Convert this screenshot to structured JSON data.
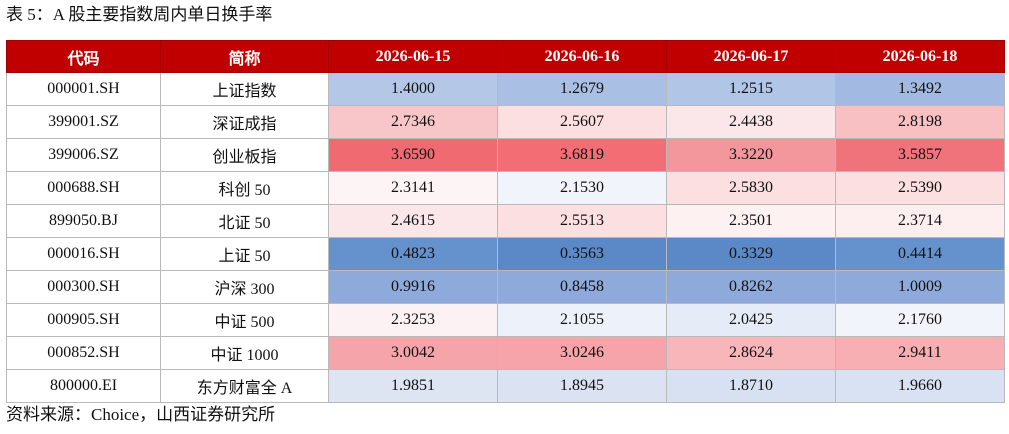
{
  "title": "表 5：A 股主要指数周内单日换手率",
  "source": "资料来源：Choice，山西证券研究所",
  "table": {
    "headers": [
      "代码",
      "简称",
      "2026-06-15",
      "2026-06-16",
      "2026-06-17",
      "2026-06-18"
    ],
    "rows": [
      {
        "code": "000001.SH",
        "name": "上证指数",
        "values": [
          "1.4000",
          "1.2679",
          "1.2515",
          "1.3492"
        ],
        "colors": [
          "#b4c7e7",
          "#a9bfe4",
          "#b1c5e6",
          "#a2b9e1"
        ]
      },
      {
        "code": "399001.SZ",
        "name": "深证成指",
        "values": [
          "2.7346",
          "2.5607",
          "2.4438",
          "2.8198"
        ],
        "colors": [
          "#f8c6c9",
          "#fbdfe1",
          "#fbe7e9",
          "#f8c0c3"
        ]
      },
      {
        "code": "399006.SZ",
        "name": "创业板指",
        "values": [
          "3.6590",
          "3.6819",
          "3.3220",
          "3.5857"
        ],
        "colors": [
          "#f06a71",
          "#f26d74",
          "#f3979c",
          "#f0727a"
        ]
      },
      {
        "code": "000688.SH",
        "name": "科创 50",
        "values": [
          "2.3141",
          "2.1530",
          "2.5830",
          "2.5390"
        ],
        "colors": [
          "#fdf4f5",
          "#f1f4fb",
          "#fbdfe1",
          "#fbdfe1"
        ]
      },
      {
        "code": "899050.BJ",
        "name": "北证 50",
        "values": [
          "2.4615",
          "2.5513",
          "2.3501",
          "2.3714"
        ],
        "colors": [
          "#fbe7e9",
          "#fbdfe1",
          "#fdf1f2",
          "#fdeeef"
        ]
      },
      {
        "code": "000016.SH",
        "name": "上证 50",
        "values": [
          "0.4823",
          "0.3563",
          "0.3329",
          "0.4414"
        ],
        "colors": [
          "#6591cc",
          "#5b89c8",
          "#5b89c8",
          "#6591cc"
        ]
      },
      {
        "code": "000300.SH",
        "name": "沪深 300",
        "values": [
          "0.9916",
          "0.8458",
          "0.8262",
          "1.0009"
        ],
        "colors": [
          "#8eaadb",
          "#8eaadb",
          "#8eaadb",
          "#8eaadb"
        ]
      },
      {
        "code": "000905.SH",
        "name": "中证 500",
        "values": [
          "2.3253",
          "2.1055",
          "2.0425",
          "2.1760"
        ],
        "colors": [
          "#fdf2f3",
          "#edf1f9",
          "#e6ecf7",
          "#f1f4fb"
        ]
      },
      {
        "code": "000852.SH",
        "name": "中证 1000",
        "values": [
          "3.0042",
          "3.0246",
          "2.8624",
          "2.9411"
        ],
        "colors": [
          "#f5a5aa",
          "#f6a4a9",
          "#f8b6ba",
          "#f7afb3"
        ]
      },
      {
        "code": "800000.EI",
        "name": "东方财富全 A",
        "values": [
          "1.9851",
          "1.8945",
          "1.8710",
          "1.9660"
        ],
        "colors": [
          "#dde5f3",
          "#dbe3f3",
          "#d8e1f2",
          "#d9e2f3"
        ]
      }
    ]
  }
}
